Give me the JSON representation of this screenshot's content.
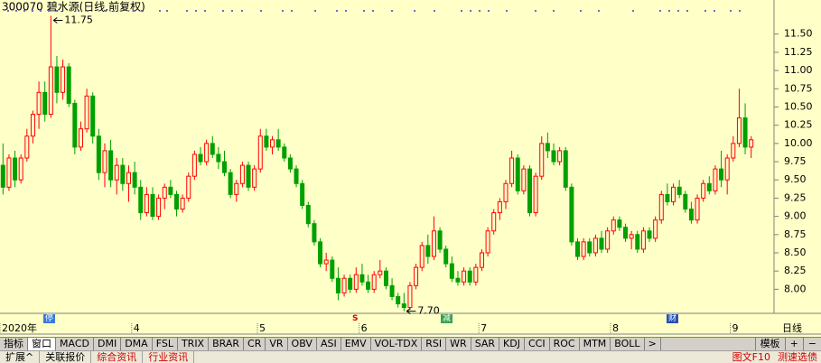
{
  "chart_data": {
    "type": "candlestick",
    "title": "300070 碧水源(日线,前复权)",
    "categories": [
      "2020年",
      null,
      null,
      null,
      null,
      null,
      null,
      null,
      null,
      null,
      null,
      null,
      null,
      null,
      null,
      null,
      null,
      null,
      null,
      null,
      null,
      null,
      "4",
      null,
      null,
      null,
      null,
      null,
      null,
      null,
      null,
      null,
      null,
      null,
      null,
      null,
      null,
      null,
      null,
      null,
      null,
      null,
      null,
      "5",
      null,
      null,
      null,
      null,
      null,
      null,
      null,
      null,
      null,
      null,
      null,
      null,
      null,
      null,
      null,
      null,
      "6",
      null,
      null,
      null,
      null,
      null,
      null,
      null,
      null,
      null,
      null,
      null,
      null,
      null,
      null,
      null,
      null,
      null,
      null,
      null,
      "7",
      null,
      null,
      null,
      null,
      null,
      null,
      null,
      null,
      null,
      null,
      null,
      null,
      null,
      null,
      null,
      null,
      null,
      null,
      null,
      null,
      null,
      "8",
      null,
      null,
      null,
      null,
      null,
      null,
      null,
      null,
      null,
      null,
      null,
      null,
      null,
      null,
      null,
      null,
      null,
      null,
      null,
      "9",
      null,
      null,
      null
    ],
    "open": [
      9.7,
      9.4,
      9.8,
      9.5,
      9.8,
      10.1,
      10.4,
      10.7,
      10.4,
      11.05,
      10.7,
      11.05,
      10.55,
      9.95,
      10.2,
      10.65,
      10.1,
      9.6,
      9.9,
      9.5,
      9.7,
      9.45,
      9.6,
      9.4,
      9.05,
      9.3,
      9.0,
      9.25,
      9.4,
      9.3,
      9.1,
      9.25,
      9.55,
      9.85,
      9.75,
      10.0,
      9.85,
      9.75,
      9.6,
      9.3,
      9.45,
      9.7,
      9.4,
      9.65,
      10.1,
      9.95,
      10.05,
      9.95,
      9.8,
      9.65,
      9.45,
      9.15,
      8.9,
      8.65,
      8.35,
      8.4,
      8.15,
      7.95,
      8.15,
      8.0,
      8.2,
      8.1,
      8.0,
      8.2,
      8.25,
      8.05,
      7.9,
      7.8,
      7.75,
      8.05,
      8.3,
      8.6,
      8.45,
      8.8,
      8.55,
      8.35,
      8.15,
      8.1,
      8.25,
      8.1,
      8.3,
      8.5,
      8.8,
      9.05,
      9.2,
      9.45,
      9.8,
      9.35,
      9.65,
      9.05,
      9.55,
      10.0,
      9.9,
      9.75,
      9.9,
      9.4,
      8.65,
      8.45,
      8.65,
      8.5,
      8.7,
      8.55,
      8.8,
      8.95,
      8.85,
      8.7,
      8.75,
      8.55,
      8.8,
      8.7,
      8.95,
      9.3,
      9.2,
      9.4,
      9.3,
      9.1,
      8.95,
      9.25,
      9.45,
      9.35,
      9.65,
      9.5,
      9.8,
      10.0,
      10.35,
      9.95
    ],
    "high": [
      10.0,
      9.85,
      9.9,
      9.85,
      10.2,
      10.45,
      10.85,
      10.85,
      11.75,
      11.2,
      11.15,
      11.1,
      10.6,
      10.3,
      10.75,
      10.7,
      10.2,
      10.0,
      10.05,
      9.8,
      9.8,
      9.7,
      9.75,
      9.5,
      9.4,
      9.4,
      9.3,
      9.45,
      9.5,
      9.35,
      9.3,
      9.6,
      9.9,
      9.95,
      10.05,
      10.1,
      9.95,
      9.9,
      9.65,
      9.5,
      9.75,
      9.75,
      9.7,
      10.2,
      10.2,
      10.1,
      10.2,
      10.0,
      9.85,
      9.7,
      9.5,
      9.2,
      8.95,
      8.7,
      8.5,
      8.45,
      8.3,
      8.2,
      8.2,
      8.3,
      8.35,
      8.2,
      8.25,
      8.4,
      8.3,
      8.15,
      7.95,
      7.95,
      8.1,
      8.35,
      8.65,
      8.75,
      9.0,
      8.85,
      8.6,
      8.45,
      8.25,
      8.3,
      8.3,
      8.35,
      8.55,
      8.85,
      9.1,
      9.25,
      9.5,
      9.9,
      9.85,
      9.7,
      9.7,
      9.6,
      10.1,
      10.15,
      10.0,
      9.95,
      9.95,
      9.45,
      8.7,
      8.7,
      8.7,
      8.75,
      8.8,
      8.85,
      9.0,
      9.0,
      8.9,
      8.8,
      8.8,
      8.85,
      8.85,
      9.0,
      9.35,
      9.45,
      9.45,
      9.5,
      9.35,
      9.2,
      9.3,
      9.5,
      9.55,
      9.7,
      9.9,
      9.85,
      10.1,
      10.75,
      10.55,
      10.1
    ],
    "low": [
      9.3,
      9.35,
      9.4,
      9.45,
      9.75,
      10.0,
      10.2,
      10.3,
      10.35,
      10.55,
      10.6,
      10.5,
      9.85,
      9.9,
      10.15,
      10.0,
      9.5,
      9.4,
      9.4,
      9.3,
      9.35,
      9.2,
      9.3,
      8.95,
      9.0,
      8.95,
      8.95,
      9.1,
      9.25,
      9.0,
      9.05,
      9.2,
      9.5,
      9.7,
      9.7,
      9.8,
      9.65,
      9.55,
      9.25,
      9.2,
      9.4,
      9.35,
      9.35,
      9.6,
      9.9,
      9.85,
      9.9,
      9.75,
      9.6,
      9.4,
      9.1,
      8.85,
      8.6,
      8.3,
      8.25,
      8.1,
      7.85,
      7.9,
      7.95,
      7.95,
      8.05,
      7.95,
      7.95,
      8.15,
      8.0,
      7.85,
      7.75,
      7.7,
      7.72,
      8.0,
      8.25,
      8.35,
      8.4,
      8.5,
      8.3,
      8.1,
      8.05,
      8.05,
      8.05,
      8.05,
      8.25,
      8.45,
      8.75,
      8.95,
      9.1,
      9.4,
      9.3,
      9.3,
      9.0,
      9.0,
      9.5,
      9.8,
      9.7,
      9.7,
      9.35,
      8.6,
      8.4,
      8.4,
      8.45,
      8.45,
      8.5,
      8.5,
      8.75,
      8.8,
      8.65,
      8.55,
      8.5,
      8.5,
      8.65,
      8.65,
      8.9,
      9.15,
      9.15,
      9.25,
      9.05,
      8.9,
      8.9,
      9.2,
      9.3,
      9.3,
      9.4,
      9.3,
      9.75,
      9.95,
      9.85,
      9.8
    ],
    "close": [
      9.4,
      9.8,
      9.5,
      9.8,
      10.1,
      10.4,
      10.7,
      10.4,
      11.05,
      10.7,
      11.05,
      10.55,
      9.95,
      10.2,
      10.65,
      10.1,
      9.6,
      9.9,
      9.5,
      9.7,
      9.45,
      9.6,
      9.4,
      9.05,
      9.3,
      9.0,
      9.25,
      9.4,
      9.3,
      9.1,
      9.25,
      9.55,
      9.85,
      9.75,
      10.0,
      9.85,
      9.75,
      9.6,
      9.3,
      9.45,
      9.7,
      9.4,
      9.65,
      10.1,
      9.95,
      10.05,
      9.95,
      9.8,
      9.65,
      9.45,
      9.15,
      8.9,
      8.65,
      8.35,
      8.4,
      8.15,
      7.95,
      8.15,
      8.0,
      8.2,
      8.1,
      8.0,
      8.2,
      8.25,
      8.05,
      7.9,
      7.8,
      7.75,
      8.05,
      8.3,
      8.6,
      8.45,
      8.8,
      8.55,
      8.35,
      8.15,
      8.1,
      8.25,
      8.1,
      8.3,
      8.5,
      8.8,
      9.05,
      9.2,
      9.45,
      9.8,
      9.35,
      9.65,
      9.05,
      9.55,
      10.0,
      9.9,
      9.75,
      9.9,
      9.4,
      8.65,
      8.45,
      8.65,
      8.5,
      8.7,
      8.55,
      8.8,
      8.95,
      8.85,
      8.7,
      8.75,
      8.55,
      8.8,
      8.7,
      8.95,
      9.3,
      9.2,
      9.4,
      9.3,
      9.1,
      8.95,
      9.25,
      9.45,
      9.35,
      9.65,
      9.5,
      9.8,
      10.0,
      10.35,
      9.95,
      10.05
    ],
    "up_color": "#ff0000",
    "down_color": "#00a000",
    "ylim": [
      7.67,
      11.93
    ],
    "yticks": [
      {
        "value": 8,
        "label": "8.00"
      },
      {
        "value": 8.25,
        "label": "8.25"
      },
      {
        "value": 8.5,
        "label": "8.50"
      },
      {
        "value": 8.75,
        "label": "8.75"
      },
      {
        "value": 9,
        "label": "9.00"
      },
      {
        "value": 9.25,
        "label": "9.25"
      },
      {
        "value": 9.5,
        "label": "9.50"
      },
      {
        "value": 9.75,
        "label": "9.75"
      },
      {
        "value": 10,
        "label": "10.00"
      },
      {
        "value": 10.25,
        "label": "10.25"
      },
      {
        "value": 10.5,
        "label": "10.50"
      },
      {
        "value": 10.75,
        "label": "10.75"
      },
      {
        "value": 11,
        "label": "11.00"
      },
      {
        "value": 11.25,
        "label": "11.25"
      },
      {
        "value": 11.5,
        "label": "11.50"
      }
    ],
    "grid": false,
    "annotations": [
      {
        "value": 11.75,
        "label": "11.75"
      },
      {
        "value": 7.7,
        "label": "7.70"
      }
    ]
  },
  "period_label": "日线",
  "markers": [
    "停",
    "S",
    "减",
    "财"
  ],
  "toolbar": {
    "tabs": [
      "指标",
      "窗口",
      "MACD",
      "DMI",
      "DMA",
      "FSL",
      "TRIX",
      "BRAR",
      "CR",
      "VR",
      "OBV",
      "ASI",
      "EMV",
      "VOL-TDX",
      "RSI",
      "WR",
      "SAR",
      "KDJ",
      "CCI",
      "ROC",
      "MTM",
      "BOLL",
      ">"
    ],
    "right": [
      "模板",
      "+",
      "−"
    ]
  },
  "bottom_bar": {
    "tabs": [
      "扩展^",
      "关联报价",
      "综合资讯",
      "行业资讯"
    ],
    "right": [
      "图文F10",
      "测速选债"
    ]
  }
}
